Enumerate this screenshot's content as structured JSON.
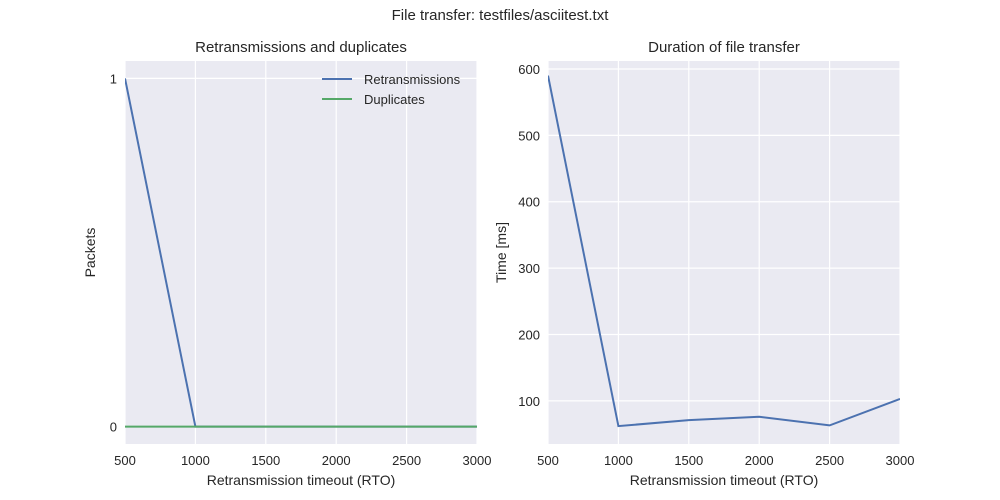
{
  "figure": {
    "title": "File transfer: testfiles/asciitest.txt"
  },
  "chart_data": [
    {
      "type": "line",
      "title": "Retransmissions and duplicates",
      "xlabel": "Retransmission timeout (RTO)",
      "ylabel": "Packets",
      "x": [
        500,
        1000,
        1500,
        2000,
        2500,
        3000
      ],
      "xlim": [
        500,
        3000
      ],
      "ylim": [
        -0.05,
        1.05
      ],
      "xticks": [
        500,
        1000,
        1500,
        2000,
        2500,
        3000
      ],
      "yticks": [
        0,
        1
      ],
      "grid": true,
      "legend": "top-right",
      "series": [
        {
          "name": "Retransmissions",
          "color": "#4c72b0",
          "values": [
            1,
            0,
            0,
            0,
            0,
            0
          ]
        },
        {
          "name": "Duplicates",
          "color": "#55a868",
          "values": [
            0,
            0,
            0,
            0,
            0,
            0
          ]
        }
      ]
    },
    {
      "type": "line",
      "title": "Duration of file transfer",
      "xlabel": "Retransmission timeout (RTO)",
      "ylabel": "Time [ms]",
      "x": [
        500,
        1000,
        1500,
        2000,
        2500,
        3000
      ],
      "xlim": [
        500,
        3000
      ],
      "ylim": [
        35,
        612
      ],
      "xticks": [
        500,
        1000,
        1500,
        2000,
        2500,
        3000
      ],
      "yticks": [
        100,
        200,
        300,
        400,
        500,
        600
      ],
      "grid": true,
      "series": [
        {
          "color": "#4c72b0",
          "values": [
            590,
            62,
            71,
            76,
            63,
            103
          ]
        }
      ]
    }
  ]
}
